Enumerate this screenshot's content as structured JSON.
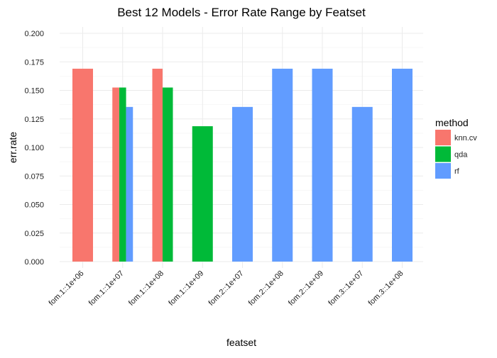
{
  "chart_data": {
    "type": "bar",
    "title": "Best 12 Models - Error Rate Range by Featset",
    "xlabel": "featset",
    "ylabel": "err.rate",
    "ylim": [
      0,
      0.21
    ],
    "yticks": [
      "0.000",
      "0.025",
      "0.050",
      "0.075",
      "0.100",
      "0.125",
      "0.150",
      "0.175",
      "0.200"
    ],
    "categories": [
      "fom.1::1e+06",
      "fom.1::1e+07",
      "fom.1::1e+08",
      "fom.1::1e+09",
      "fom.2::1e+07",
      "fom.2::1e+08",
      "fom.2::1e+09",
      "fom.3::1e+07",
      "fom.3::1e+08"
    ],
    "grid": true,
    "legend": {
      "title": "method",
      "position": "right",
      "entries": [
        {
          "key": "knn.cv",
          "label": "knn.cv",
          "color": "#F8766D"
        },
        {
          "key": "qda",
          "label": "qda",
          "color": "#00BA38"
        },
        {
          "key": "rf",
          "label": "rf",
          "color": "#619CFF"
        }
      ]
    },
    "bars": [
      {
        "category": "fom.1::1e+06",
        "method": "knn.cv",
        "value": 0.169
      },
      {
        "category": "fom.1::1e+07",
        "method": "knn.cv",
        "value": 0.1525
      },
      {
        "category": "fom.1::1e+07",
        "method": "qda",
        "value": 0.1525
      },
      {
        "category": "fom.1::1e+07",
        "method": "rf",
        "value": 0.1355
      },
      {
        "category": "fom.1::1e+08",
        "method": "knn.cv",
        "value": 0.169
      },
      {
        "category": "fom.1::1e+08",
        "method": "qda",
        "value": 0.1525
      },
      {
        "category": "fom.1::1e+09",
        "method": "qda",
        "value": 0.1186
      },
      {
        "category": "fom.2::1e+07",
        "method": "rf",
        "value": 0.1355
      },
      {
        "category": "fom.2::1e+08",
        "method": "rf",
        "value": 0.169
      },
      {
        "category": "fom.2::1e+09",
        "method": "rf",
        "value": 0.169
      },
      {
        "category": "fom.3::1e+07",
        "method": "rf",
        "value": 0.1355
      },
      {
        "category": "fom.3::1e+08",
        "method": "rf",
        "value": 0.169
      }
    ]
  }
}
